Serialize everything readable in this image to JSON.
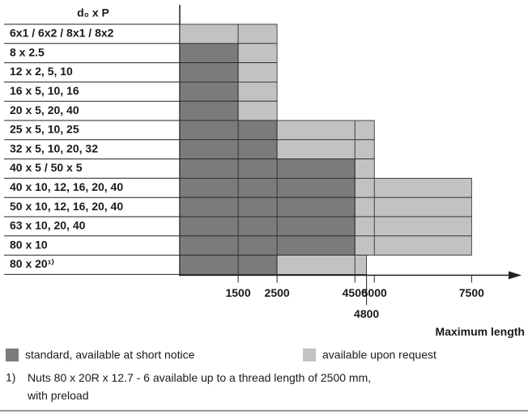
{
  "chart_data": {
    "type": "bar-range",
    "orientation": "horizontal",
    "category_header": "d₀ x P",
    "categories": [
      "6x1 / 6x2 / 8x1 / 8x2",
      "8 x 2.5",
      "12 x 2, 5, 10",
      "16 x 5, 10, 16",
      "20 x 5, 20, 40",
      "25 x 5, 10, 25",
      "32 x 5, 10, 20, 32",
      "40 x 5 / 50 x 5",
      "40 x 10, 12, 16, 20, 40",
      "50 x 10, 12, 16, 20, 40",
      "63 x 10, 20, 40",
      "80 x 10",
      "80 x 20¹⁾"
    ],
    "series": [
      {
        "name": "standard, available at short notice",
        "color": "#7b7b7b",
        "values": [
          0,
          1500,
          1500,
          1500,
          1500,
          2500,
          2500,
          4500,
          4500,
          4500,
          4500,
          4500,
          2500
        ]
      },
      {
        "name": "available upon request",
        "color": "#c2c2c2",
        "values": [
          2500,
          1000,
          1000,
          1000,
          1000,
          2500,
          2500,
          500,
          3000,
          3000,
          3000,
          3000,
          2300
        ]
      }
    ],
    "xlim": [
      0,
      8700
    ],
    "xticks": [
      1500,
      2500,
      4500,
      4800,
      5000,
      7500
    ],
    "x_label": "Maximum length",
    "footnote": {
      "marker": "1)",
      "text": "Nuts 80 x 20R x 12.7 - 6 available up to a thread length of 2500 mm, with preload"
    }
  }
}
